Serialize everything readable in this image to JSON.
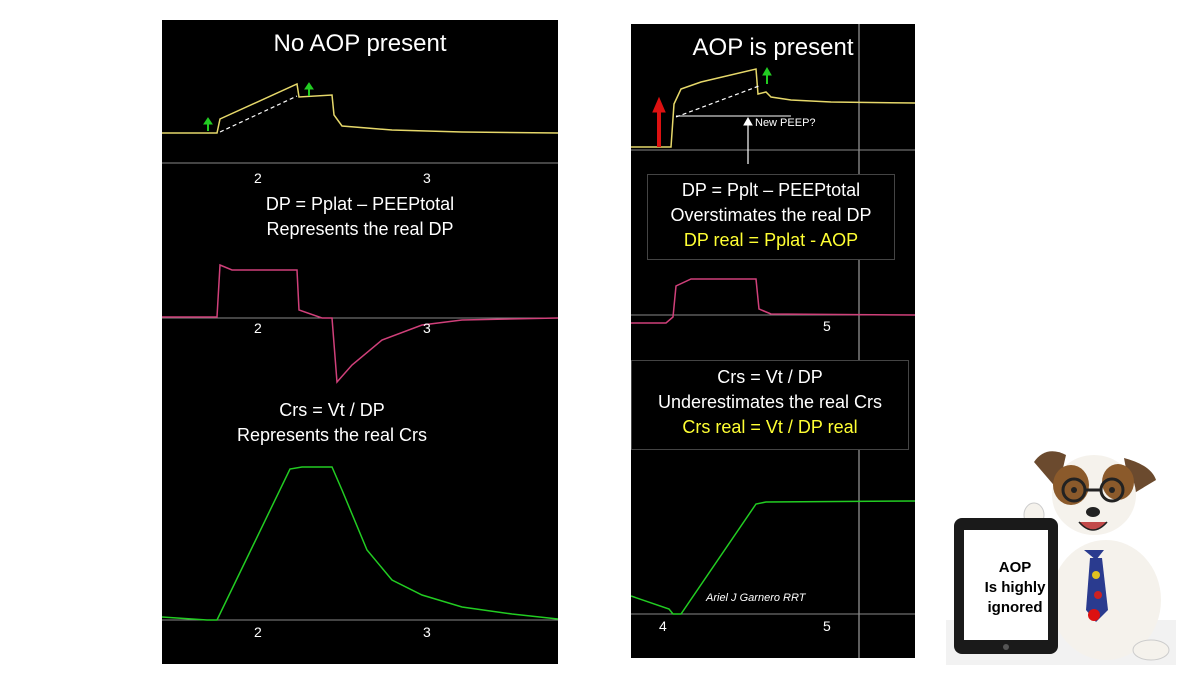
{
  "left": {
    "title": "No AOP present",
    "ticks_pressure": [
      "2",
      "3"
    ],
    "dp_caption": [
      "DP = Pplat – PEEPtotal",
      "Represents the real DP"
    ],
    "ticks_flow": [
      "2",
      "3"
    ],
    "crs_caption": [
      "Crs = Vt / DP",
      "Represents the real Crs"
    ],
    "ticks_volume": [
      "2",
      "3"
    ]
  },
  "right": {
    "title": "AOP is present",
    "new_peep_label": "New PEEP?",
    "dp_box": [
      "DP = Pplt – PEEPtotal",
      "Overstimates the real DP",
      "DP real = Pplat - AOP"
    ],
    "ticks_flow": [
      "5"
    ],
    "crs_box": [
      "Crs = Vt / DP",
      "Underestimates the real Crs",
      "Crs real = Vt / DP real"
    ],
    "signature": "Ariel J Garnero RRT",
    "ticks_volume": [
      "4",
      "5"
    ]
  },
  "tablet": [
    "AOP",
    "Is highly",
    "ignored"
  ],
  "colors": {
    "pressure": "#e6d86a",
    "flow": "#d0407a",
    "volume": "#22cc22",
    "arrow_green": "#22cc22",
    "arrow_red": "#dd1111",
    "highlight": "#ffff33"
  }
}
